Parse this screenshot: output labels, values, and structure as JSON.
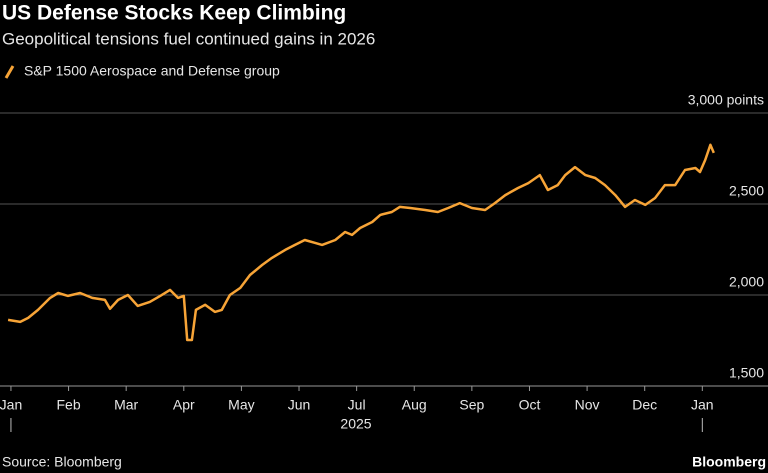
{
  "chart_data": {
    "type": "line",
    "title": "US Defense Stocks Keep Climbing",
    "subtitle": "Geopolitical tensions fuel continued gains in 2026",
    "source": "Source: Bloomberg",
    "brand": "Bloomberg",
    "x_year_label": "2025",
    "grid": true,
    "xlim": [
      -0.19,
      13.14
    ],
    "ylim": [
      1500,
      3000
    ],
    "xticks": [
      {
        "value": 0,
        "label": "Jan"
      },
      {
        "value": 1,
        "label": "Feb"
      },
      {
        "value": 2,
        "label": "Mar"
      },
      {
        "value": 3,
        "label": "Apr"
      },
      {
        "value": 4,
        "label": "May"
      },
      {
        "value": 5,
        "label": "Jun"
      },
      {
        "value": 6,
        "label": "Jul"
      },
      {
        "value": 7,
        "label": "Aug"
      },
      {
        "value": 8,
        "label": "Sep"
      },
      {
        "value": 9,
        "label": "Oct"
      },
      {
        "value": 10,
        "label": "Nov"
      },
      {
        "value": 11,
        "label": "Dec"
      },
      {
        "value": 12,
        "label": "Jan"
      }
    ],
    "yticks": [
      {
        "value": 1500,
        "label": "1,500"
      },
      {
        "value": 2000,
        "label": "2,000"
      },
      {
        "value": 2500,
        "label": "2,500"
      },
      {
        "value": 3000,
        "label": "3,000 points"
      }
    ],
    "x": [
      -0.05,
      0.16,
      0.3,
      0.47,
      0.68,
      0.82,
      0.99,
      1.2,
      1.41,
      1.63,
      1.72,
      1.86,
      2.03,
      2.2,
      2.41,
      2.59,
      2.76,
      2.9,
      3.0,
      3.06,
      3.14,
      3.21,
      3.37,
      3.54,
      3.66,
      3.8,
      3.98,
      4.15,
      4.36,
      4.53,
      4.76,
      4.93,
      5.1,
      5.28,
      5.4,
      5.63,
      5.8,
      5.92,
      6.06,
      6.27,
      6.41,
      6.61,
      6.75,
      6.93,
      7.19,
      7.41,
      7.59,
      7.79,
      8.0,
      8.23,
      8.4,
      8.58,
      8.8,
      8.98,
      9.18,
      9.32,
      9.49,
      9.62,
      9.79,
      9.97,
      10.14,
      10.31,
      10.49,
      10.66,
      10.83,
      11.01,
      11.18,
      11.35,
      11.53,
      11.7,
      11.88,
      11.96,
      12.05,
      12.14,
      12.2
    ],
    "series": [
      {
        "name": "S&P 1500 Aerospace and Defense group",
        "color": "#f7a437",
        "values": [
          1863,
          1852,
          1874,
          1918,
          1984,
          2011,
          1995,
          2011,
          1984,
          1973,
          1924,
          1973,
          2000,
          1940,
          1962,
          1995,
          2028,
          1984,
          1995,
          1753,
          1753,
          1918,
          1946,
          1907,
          1918,
          2000,
          2039,
          2110,
          2165,
          2204,
          2248,
          2275,
          2302,
          2286,
          2275,
          2302,
          2346,
          2330,
          2368,
          2401,
          2440,
          2456,
          2484,
          2478,
          2467,
          2456,
          2478,
          2505,
          2478,
          2467,
          2505,
          2549,
          2588,
          2615,
          2659,
          2577,
          2604,
          2659,
          2703,
          2659,
          2643,
          2604,
          2549,
          2484,
          2522,
          2495,
          2533,
          2604,
          2604,
          2687,
          2698,
          2676,
          2742,
          2825,
          2781
        ]
      }
    ]
  }
}
